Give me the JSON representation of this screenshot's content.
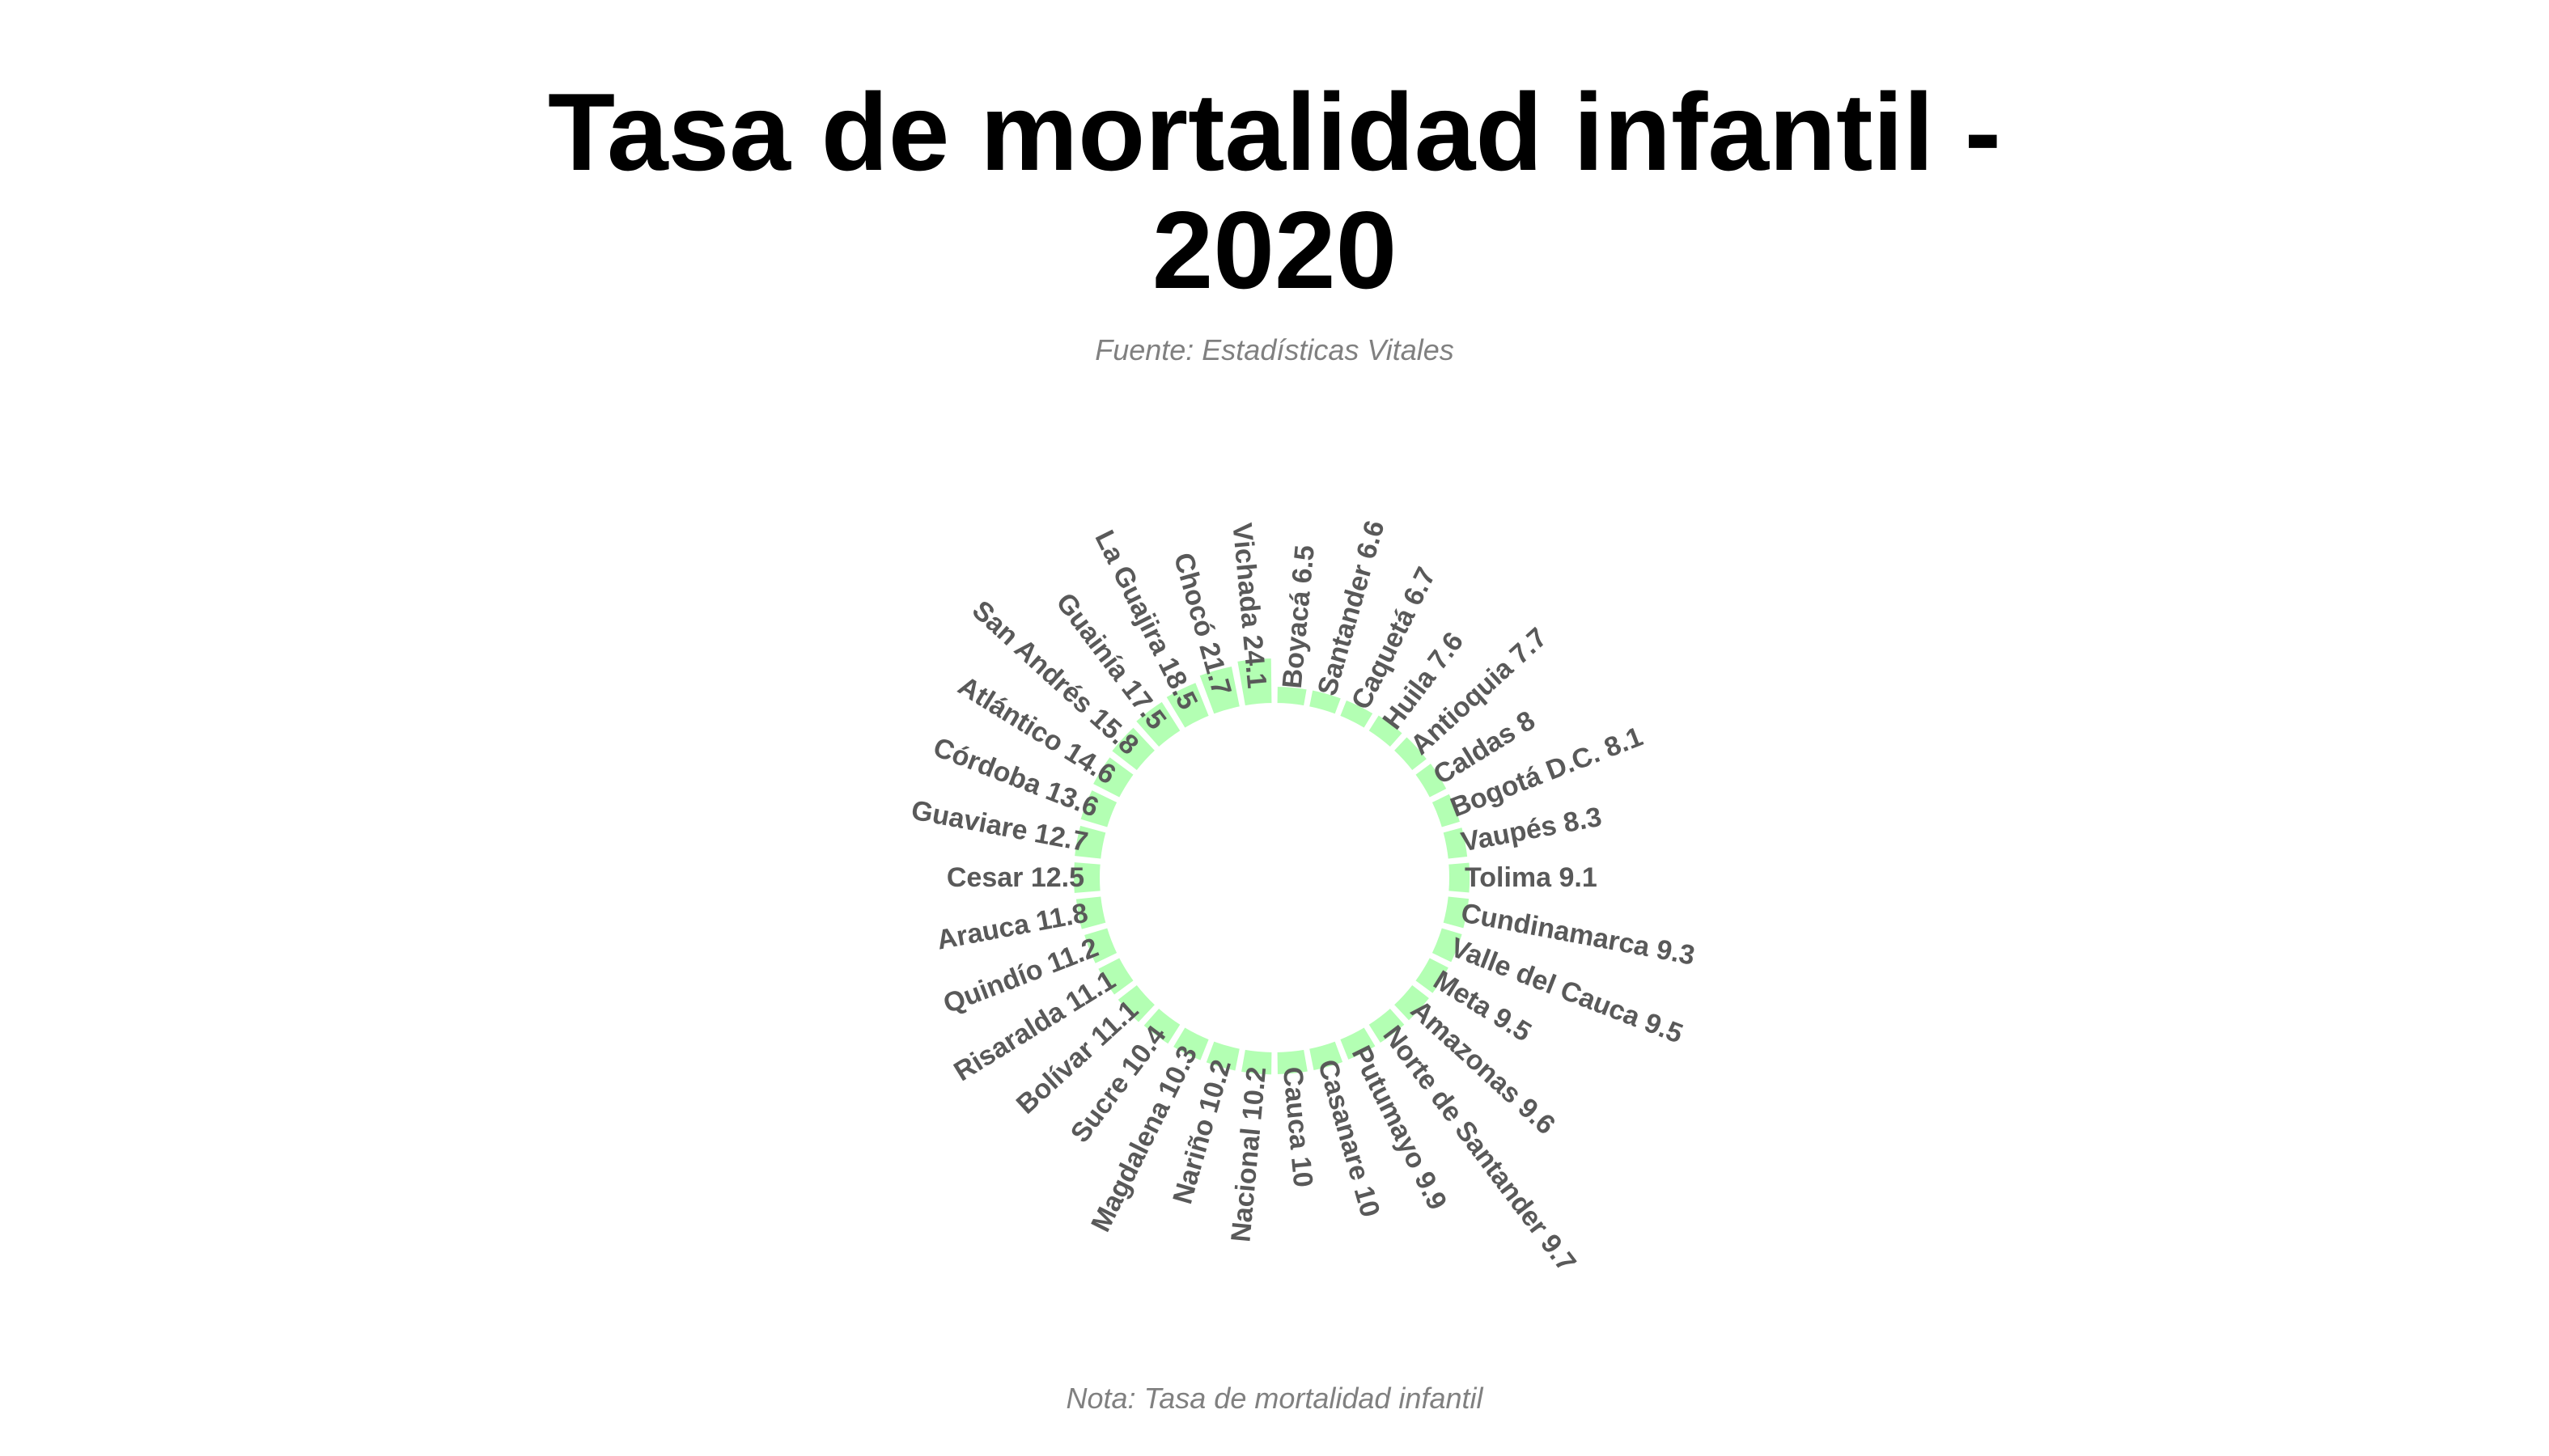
{
  "chart_data": {
    "type": "bar",
    "polar": true,
    "title_lines": [
      "Tasa de mortalidad infantil -",
      "2020"
    ],
    "subtitle": "Fuente: Estadísticas Vitales",
    "caption": "Nota: Tasa de mortalidad infantil",
    "bar_color": "#b3ffb3",
    "label_color": "#595959",
    "categories": [
      "Boyacá",
      "Santander",
      "Caquetá",
      "Huila",
      "Antioquia",
      "Caldas",
      "Bogotá D.C.",
      "Vaupés",
      "Tolima",
      "Cundinamarca",
      "Valle del Cauca",
      "Meta",
      "Amazonas",
      "Norte de Santander",
      "Putumayo",
      "Casanare",
      "Cauca",
      "Nacional",
      "Nariño",
      "Magdalena",
      "Sucre",
      "Bolívar",
      "Risaralda",
      "Quindío",
      "Arauca",
      "Cesar",
      "Guaviare",
      "Córdoba",
      "Atlántico",
      "San Andrés",
      "Guainía",
      "La Guajira",
      "Chocó",
      "Vichada"
    ],
    "values": [
      6.5,
      6.6,
      6.7,
      7.6,
      7.7,
      8,
      8.1,
      8.3,
      9.1,
      9.3,
      9.5,
      9.5,
      9.6,
      9.7,
      9.9,
      10,
      10,
      10.2,
      10.2,
      10.3,
      10.4,
      11.1,
      11.1,
      11.2,
      11.8,
      12.5,
      12.7,
      13.6,
      14.6,
      15.8,
      17.5,
      18.5,
      21.7,
      24.1
    ],
    "labels": [
      "Boyacá 6.5",
      "Santander 6.6",
      "Caquetá 6.7",
      "Huila 7.6",
      "Antioquia 7.7",
      "Caldas 8",
      "Bogotá D.C. 8.1",
      "Vaupés 8.3",
      "Tolima 9.1",
      "Cundinamarca 9.3",
      "Valle del Cauca 9.5",
      "Meta 9.5",
      "Amazonas 9.6",
      "Norte de Santander 9.7",
      "Putumayo 9.9",
      "Casanare 10",
      "Cauca 10",
      "Nacional 10.2",
      "Nariño 10.2",
      "Magdalena 10.3",
      "Sucre 10.4",
      "Bolívar 11.1",
      "Risaralda 11.1",
      "Quindío 11.2",
      "Arauca 11.8",
      "Cesar 12.5",
      "Guaviare 12.7",
      "Córdoba 13.6",
      "Atlántico 14.6",
      "San Andrés 15.8",
      "Guainía 17.5",
      "La Guajira 18.5",
      "Chocó 21.7",
      "Vichada 24.1"
    ]
  }
}
